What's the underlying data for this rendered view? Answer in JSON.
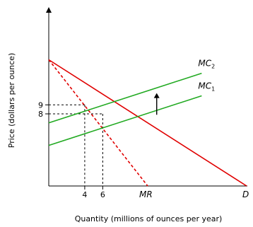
{
  "chart_data": {
    "type": "line",
    "xlabel": "Quantity (millions of ounces per year)",
    "ylabel": "Price (dollars per ounce)",
    "x_ticks": [
      "4",
      "6"
    ],
    "y_ticks": [
      "9",
      "8"
    ],
    "xlim": [
      0,
      22
    ],
    "ylim": [
      0,
      16
    ],
    "series": [
      {
        "name": "D",
        "style": "solid",
        "color": "#e00000",
        "points": [
          [
            0,
            14
          ],
          [
            22,
            0
          ]
        ]
      },
      {
        "name": "MR",
        "style": "dashed",
        "color": "#e00000",
        "points": [
          [
            0,
            14
          ],
          [
            11,
            0
          ]
        ]
      },
      {
        "name": "MC",
        "sub": "1",
        "style": "solid",
        "color": "#22aa22",
        "points": [
          [
            0,
            4.5
          ],
          [
            17,
            10
          ]
        ]
      },
      {
        "name": "MC",
        "sub": "2",
        "style": "solid",
        "color": "#22aa22",
        "points": [
          [
            0,
            7
          ],
          [
            17,
            12.5
          ]
        ]
      }
    ],
    "guides": [
      {
        "y": 9,
        "x": 4
      },
      {
        "y": 8,
        "x": 6
      }
    ],
    "arrow": {
      "x": 12,
      "from": 7.9,
      "to": 10.3,
      "label": "shift up"
    }
  }
}
